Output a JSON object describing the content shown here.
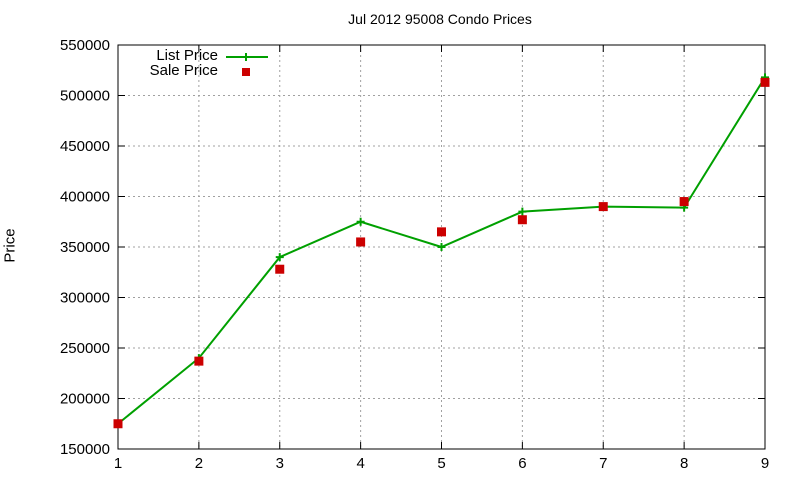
{
  "chart_data": {
    "type": "line",
    "title": "Jul 2012 95008 Condo Prices",
    "xlabel": "",
    "ylabel": "Price",
    "x": [
      1,
      2,
      3,
      4,
      5,
      6,
      7,
      8,
      9
    ],
    "xticks": [
      "1",
      "2",
      "3",
      "4",
      "5",
      "6",
      "7",
      "8",
      "9"
    ],
    "yticks": [
      "150000",
      "200000",
      "250000",
      "300000",
      "350000",
      "400000",
      "450000",
      "500000",
      "550000"
    ],
    "xlim": [
      1,
      9
    ],
    "ylim": [
      150000,
      550000
    ],
    "grid": true,
    "legend_position": "top-left",
    "series": [
      {
        "name": "List Price",
        "style": "linespoints",
        "marker": "plus",
        "color": "#00a000",
        "values": [
          175000,
          240000,
          340000,
          375000,
          350000,
          385000,
          390000,
          389000,
          518000
        ]
      },
      {
        "name": "Sale Price",
        "style": "points",
        "marker": "square",
        "color": "#cc0000",
        "values": [
          175000,
          237000,
          328000,
          355000,
          365000,
          377000,
          390000,
          395000,
          513000
        ]
      }
    ]
  }
}
